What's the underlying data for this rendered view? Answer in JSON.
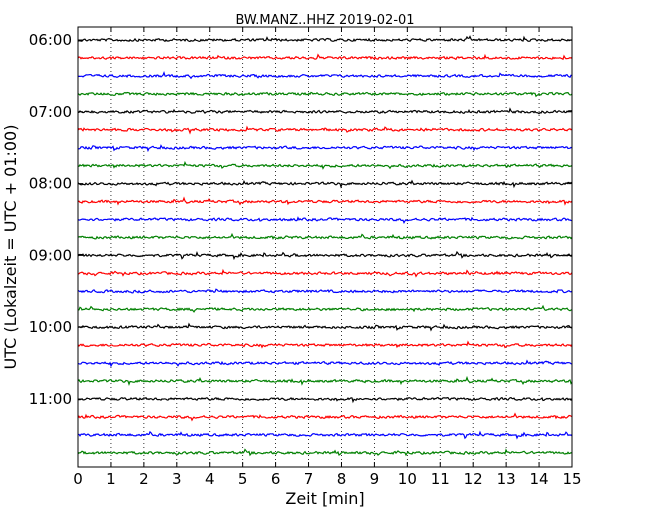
{
  "chart_data": {
    "type": "line",
    "subtype": "seismogram-dayplot",
    "title": "BW.MANZ..HHZ 2019-02-01",
    "xlabel": "Zeit  [min]",
    "ylabel": "UTC (Lokalzeit = UTC + 01:00)",
    "xlim": [
      0,
      15
    ],
    "xticks": [
      "0",
      "1",
      "2",
      "3",
      "4",
      "5",
      "6",
      "7",
      "8",
      "9",
      "10",
      "11",
      "12",
      "13",
      "14",
      "15"
    ],
    "ytick_labels": [
      "06:00",
      "07:00",
      "08:00",
      "09:00",
      "10:00",
      "11:00"
    ],
    "rows_per_hour": 4,
    "row_colors": [
      "#000000",
      "#ff0000",
      "#0000ff",
      "#008000"
    ],
    "grid": "vertical dotted",
    "rows": [
      {
        "start": "06:00"
      },
      {
        "start": "06:15"
      },
      {
        "start": "06:30"
      },
      {
        "start": "06:45"
      },
      {
        "start": "07:00"
      },
      {
        "start": "07:15"
      },
      {
        "start": "07:30"
      },
      {
        "start": "07:45"
      },
      {
        "start": "08:00"
      },
      {
        "start": "08:15"
      },
      {
        "start": "08:30"
      },
      {
        "start": "08:45"
      },
      {
        "start": "09:00"
      },
      {
        "start": "09:15"
      },
      {
        "start": "09:30"
      },
      {
        "start": "09:45"
      },
      {
        "start": "10:00"
      },
      {
        "start": "10:15"
      },
      {
        "start": "10:30"
      },
      {
        "start": "10:45"
      },
      {
        "start": "11:00"
      },
      {
        "start": "11:15"
      },
      {
        "start": "11:30"
      },
      {
        "start": "11:45"
      }
    ]
  }
}
